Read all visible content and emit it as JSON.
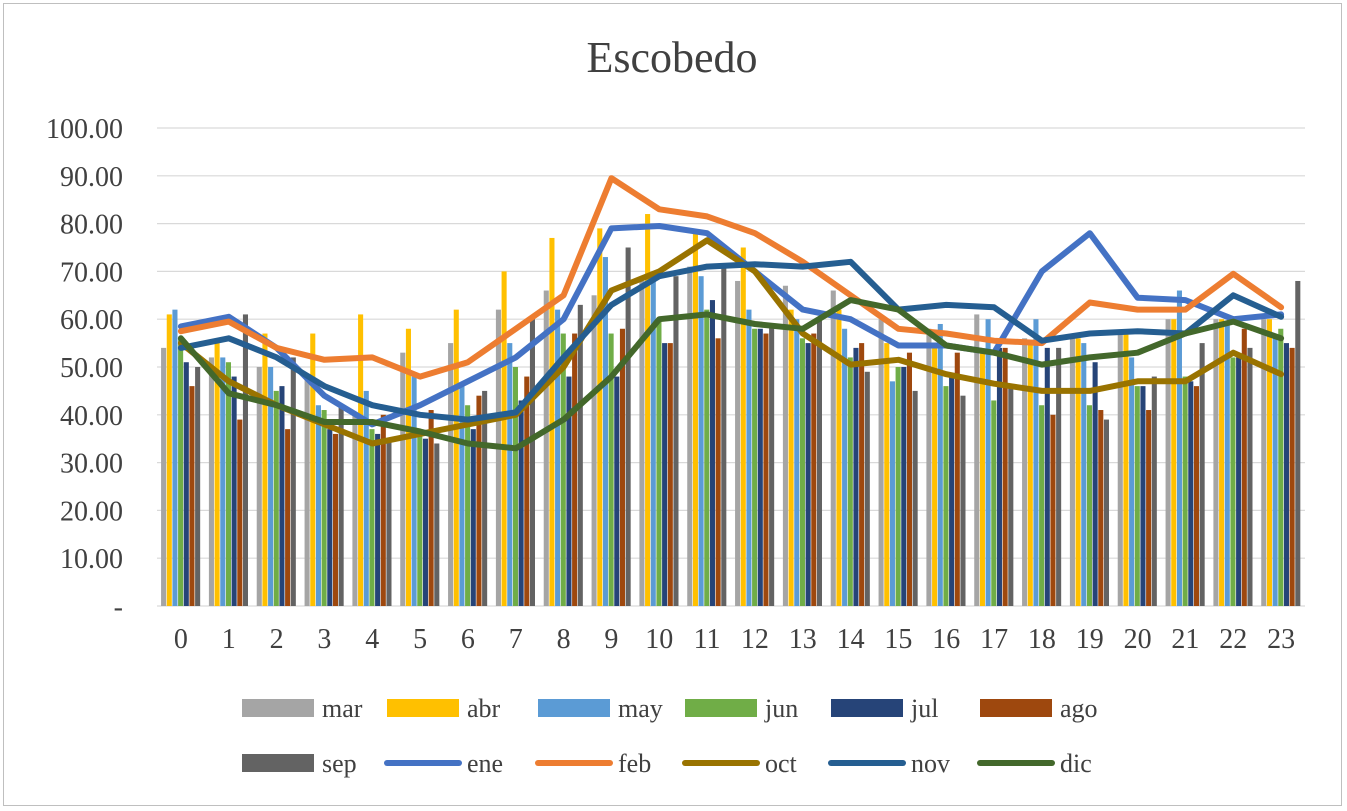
{
  "chart_data": {
    "type": "bar",
    "title": "Escobedo",
    "xlabel": "",
    "ylabel": "",
    "ylim": [
      0,
      100
    ],
    "yticks": [
      0,
      10,
      20,
      30,
      40,
      50,
      60,
      70,
      80,
      90,
      100
    ],
    "ytick_labels": [
      "-",
      "10.00",
      "20.00",
      "30.00",
      "40.00",
      "50.00",
      "60.00",
      "70.00",
      "80.00",
      "90.00",
      "100.00"
    ],
    "grid": true,
    "legend_position": "bottom",
    "categories": [
      "0",
      "1",
      "2",
      "3",
      "4",
      "5",
      "6",
      "7",
      "8",
      "9",
      "10",
      "11",
      "12",
      "13",
      "14",
      "15",
      "16",
      "17",
      "18",
      "19",
      "20",
      "21",
      "22",
      "23"
    ],
    "bar_series": [
      {
        "name": "mar",
        "color": "#a5a5a5",
        "values": [
          54,
          52,
          50,
          48,
          40,
          53,
          55,
          62,
          66,
          65,
          68,
          71,
          68,
          67,
          66,
          60,
          58,
          61,
          56,
          57,
          57,
          60,
          60,
          60
        ]
      },
      {
        "name": "abr",
        "color": "#ffc000",
        "values": [
          61,
          55,
          57,
          57,
          61,
          58,
          62,
          70,
          77,
          79,
          82,
          78,
          75,
          62,
          62,
          55,
          55,
          53,
          55,
          56,
          57,
          60,
          60,
          60
        ]
      },
      {
        "name": "may",
        "color": "#5b9bd5",
        "values": [
          62,
          52,
          50,
          42,
          45,
          48,
          46,
          55,
          62,
          73,
          68,
          69,
          62,
          60,
          58,
          47,
          59,
          60,
          60,
          55,
          52,
          66,
          59,
          56
        ]
      },
      {
        "name": "jun",
        "color": "#70ad47",
        "values": [
          56,
          51,
          45,
          41,
          37,
          36,
          42,
          50,
          57,
          57,
          60,
          62,
          58,
          56,
          52,
          50,
          46,
          43,
          42,
          42,
          46,
          48,
          52,
          58
        ]
      },
      {
        "name": "jul",
        "color": "#264478",
        "values": [
          51,
          48,
          46,
          37,
          36,
          35,
          37,
          43,
          48,
          48,
          55,
          64,
          58,
          55,
          54,
          50,
          48,
          54,
          54,
          51,
          46,
          47,
          52,
          55
        ]
      },
      {
        "name": "ago",
        "color": "#9e480e",
        "values": [
          46,
          39,
          37,
          36,
          40,
          41,
          44,
          48,
          57,
          58,
          55,
          56,
          57,
          57,
          55,
          53,
          53,
          54,
          40,
          41,
          41,
          46,
          58,
          54
        ]
      },
      {
        "name": "sep",
        "color": "#636363",
        "values": [
          50,
          61,
          52,
          42,
          35,
          34,
          45,
          60,
          63,
          75,
          69,
          71,
          59,
          60,
          49,
          45,
          44,
          46,
          54,
          39,
          48,
          55,
          54,
          68
        ]
      }
    ],
    "line_series": [
      {
        "name": "ene",
        "color": "#4472c4",
        "values": [
          58.5,
          60.5,
          54,
          44,
          38,
          42,
          47,
          52,
          60,
          79,
          79.5,
          78,
          70,
          62,
          60,
          54.5,
          54.5,
          53,
          70,
          78,
          64.5,
          64,
          60,
          61
        ]
      },
      {
        "name": "feb",
        "color": "#ed7d31",
        "values": [
          57.5,
          59.5,
          54,
          51.5,
          52,
          48,
          51,
          58,
          65,
          89.5,
          83,
          81.5,
          78,
          72,
          65,
          58,
          57,
          55.5,
          55,
          63.5,
          62,
          62,
          69.5,
          62.5
        ]
      },
      {
        "name": "oct",
        "color": "#997300",
        "values": [
          55,
          47,
          42,
          38,
          34,
          36,
          38,
          40,
          50,
          66,
          70,
          76.5,
          70,
          57,
          50.5,
          51.5,
          48.5,
          46.5,
          45,
          45,
          47,
          47,
          53,
          48.5
        ]
      },
      {
        "name": "nov",
        "color": "#255e91",
        "values": [
          54,
          56,
          52,
          46,
          42,
          40,
          39,
          40.5,
          52,
          63,
          69,
          71,
          71.5,
          71,
          72,
          62,
          63,
          62.5,
          55.5,
          57,
          57.5,
          57,
          65,
          60.5
        ]
      },
      {
        "name": "dic",
        "color": "#43682b",
        "values": [
          56,
          44.5,
          42,
          38.5,
          38.5,
          36.5,
          34,
          33,
          39,
          48,
          60,
          61,
          59,
          58,
          64,
          62,
          54.5,
          53,
          50.5,
          52,
          53,
          57,
          59.5,
          56
        ]
      }
    ],
    "legend_order": [
      "mar",
      "abr",
      "may",
      "jun",
      "jul",
      "ago",
      "sep",
      "ene",
      "feb",
      "oct",
      "nov",
      "dic"
    ]
  }
}
